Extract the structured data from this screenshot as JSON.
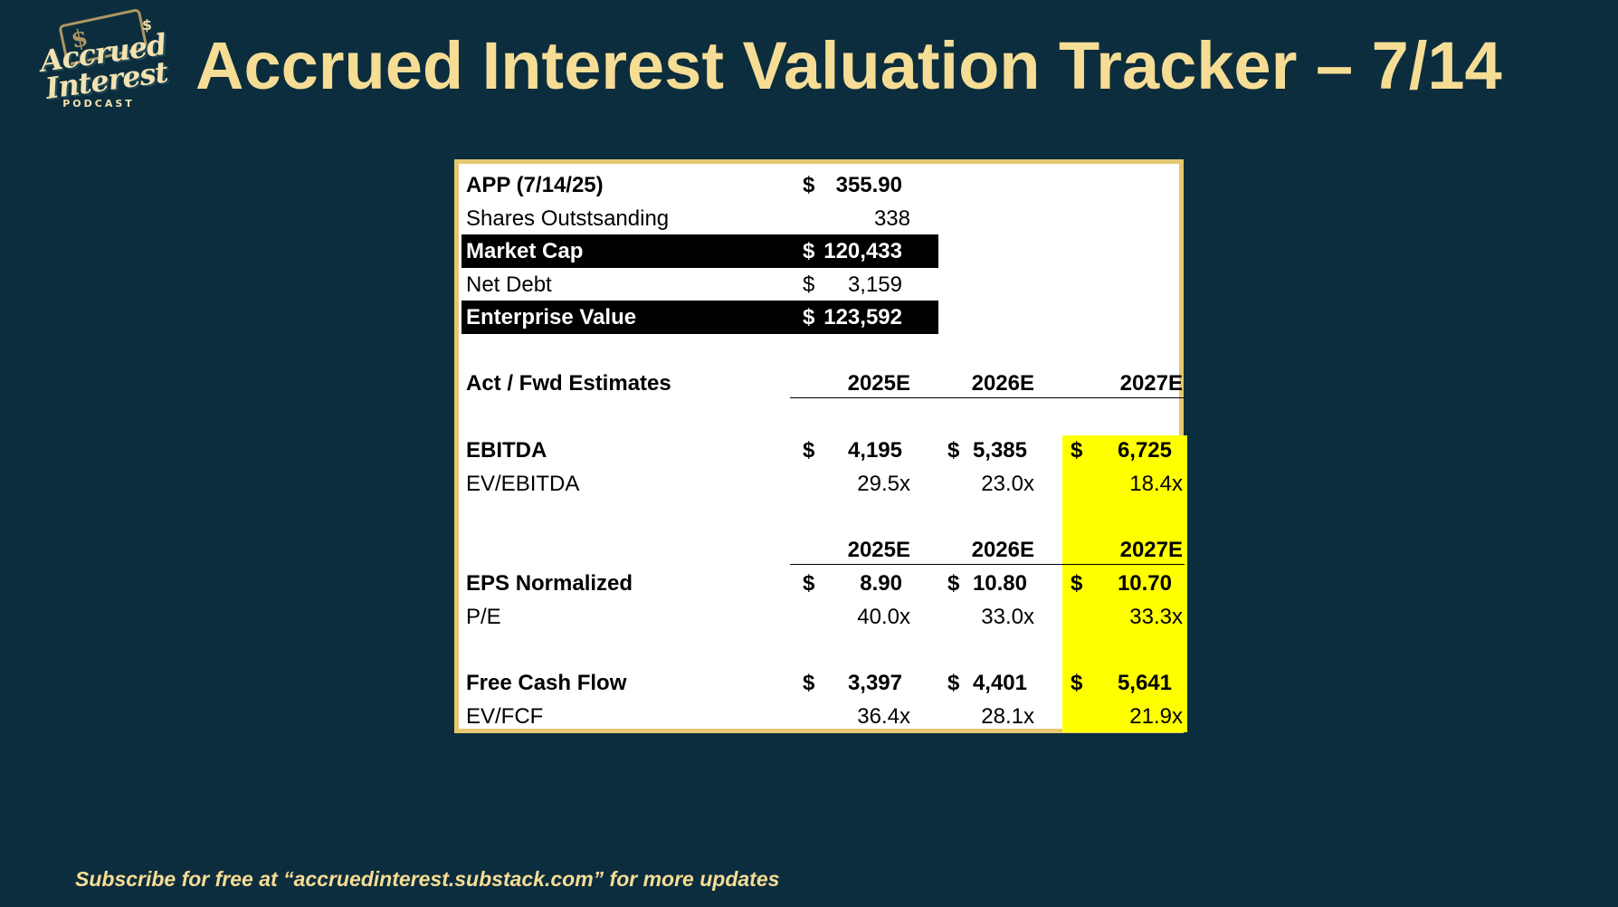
{
  "header": {
    "title": "Accrued Interest Valuation Tracker – 7/14",
    "logo": {
      "line1": "Accrued",
      "line2": "Interest",
      "line3": "PODCAST",
      "mark": "$"
    }
  },
  "table": {
    "price": {
      "label": "APP (7/14/25)",
      "currency": "$",
      "value": "355.90"
    },
    "shares": {
      "label": "Shares Outstsanding",
      "value": "338"
    },
    "market_cap": {
      "label": "Market Cap",
      "currency": "$",
      "value": "120,433"
    },
    "net_debt": {
      "label": "Net Debt",
      "currency": "$",
      "value": "3,159"
    },
    "enterprise_value": {
      "label": "Enterprise Value",
      "currency": "$",
      "value": "123,592"
    },
    "estimates_label": "Act / Fwd Estimates",
    "years": [
      "2025E",
      "2026E",
      "2027E"
    ],
    "ebitda": {
      "label": "EBITDA",
      "currency": "$",
      "values": [
        "4,195",
        "5,385",
        "6,725"
      ]
    },
    "ev_ebitda": {
      "label": "EV/EBITDA",
      "values": [
        "29.5x",
        "23.0x",
        "18.4x"
      ]
    },
    "eps": {
      "label": "EPS Normalized",
      "currency": "$",
      "values": [
        "8.90",
        "10.80",
        "10.70"
      ]
    },
    "pe": {
      "label": "P/E",
      "values": [
        "40.0x",
        "33.0x",
        "33.3x"
      ]
    },
    "fcf": {
      "label": "Free Cash Flow",
      "currency": "$",
      "values": [
        "3,397",
        "4,401",
        "5,641"
      ]
    },
    "ev_fcf": {
      "label": "EV/FCF",
      "values": [
        "36.4x",
        "28.1x",
        "21.9x"
      ]
    },
    "highlight_color": "#ffff00"
  },
  "footer": {
    "text": "Subscribe for free at “accruedinterest.substack.com” for more updates"
  },
  "colors": {
    "background": "#0c2d3d",
    "title": "#f6dd95",
    "panel_border": "#e4c870"
  }
}
